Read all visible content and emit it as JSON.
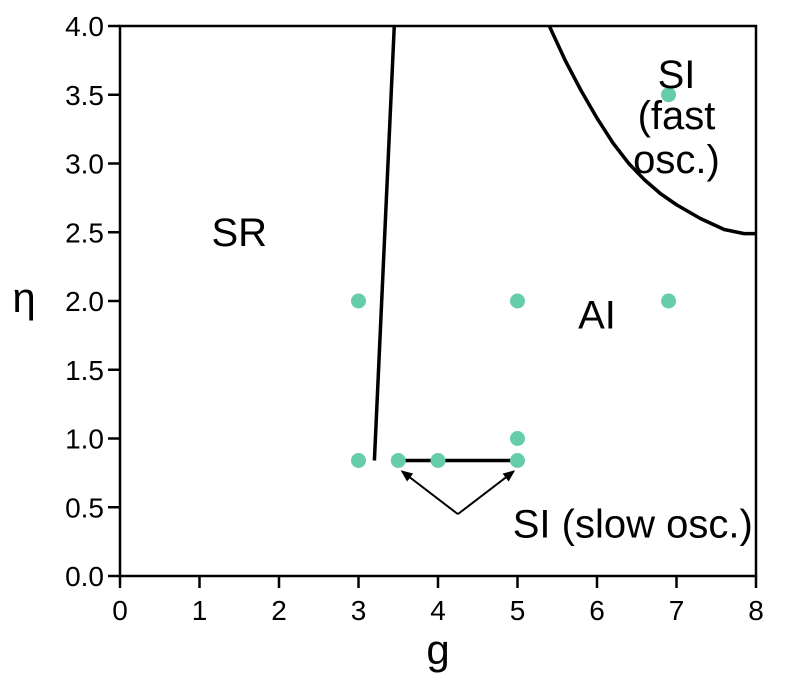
{
  "chart_data": {
    "type": "scatter",
    "title": "",
    "xlabel": "g",
    "ylabel": "η",
    "xlim": [
      0,
      8
    ],
    "ylim": [
      0,
      4
    ],
    "x_ticks": [
      "0",
      "1",
      "2",
      "3",
      "4",
      "5",
      "6",
      "7",
      "8"
    ],
    "y_ticks": [
      "0.0",
      "0.5",
      "1.0",
      "1.5",
      "2.0",
      "2.5",
      "3.0",
      "3.5",
      "4.0"
    ],
    "grid": false,
    "legend": "none",
    "point_color": "#66cdaa",
    "points": [
      {
        "x": 3.0,
        "y": 0.84
      },
      {
        "x": 3.5,
        "y": 0.84
      },
      {
        "x": 4.0,
        "y": 0.84
      },
      {
        "x": 5.0,
        "y": 0.84
      },
      {
        "x": 5.0,
        "y": 1.0
      },
      {
        "x": 3.0,
        "y": 2.0
      },
      {
        "x": 5.0,
        "y": 2.0
      },
      {
        "x": 6.9,
        "y": 2.0
      },
      {
        "x": 6.9,
        "y": 3.5
      }
    ],
    "boundaries": [
      {
        "name": "SR-AI",
        "points": [
          [
            3.2,
            0.84
          ],
          [
            3.45,
            4.0
          ]
        ]
      },
      {
        "name": "SI-slow",
        "points": [
          [
            3.5,
            0.84
          ],
          [
            5.0,
            0.84
          ]
        ]
      },
      {
        "name": "SI-fast",
        "points": [
          [
            5.4,
            4.0
          ],
          [
            5.6,
            3.75
          ],
          [
            5.8,
            3.53
          ],
          [
            6.0,
            3.33
          ],
          [
            6.2,
            3.15
          ],
          [
            6.4,
            3.0
          ],
          [
            6.6,
            2.88
          ],
          [
            6.8,
            2.78
          ],
          [
            7.0,
            2.7
          ],
          [
            7.3,
            2.6
          ],
          [
            7.6,
            2.52
          ],
          [
            7.85,
            2.49
          ],
          [
            8.0,
            2.49
          ]
        ]
      }
    ],
    "annotations": [
      {
        "id": "sr",
        "text": "SR",
        "x": 1.5,
        "y": 2.4
      },
      {
        "id": "ai",
        "text": "AI",
        "x": 6.0,
        "y": 1.8
      },
      {
        "id": "si_fast_line1",
        "text": "SI",
        "x": 7.0,
        "y": 3.55
      },
      {
        "id": "si_fast_line2",
        "text": "(fast",
        "x": 7.0,
        "y": 3.25
      },
      {
        "id": "si_fast_line3",
        "text": "osc.)",
        "x": 7.0,
        "y": 2.93
      },
      {
        "id": "si_slow",
        "text": "SI (slow osc.)",
        "x": 6.45,
        "y": 0.28
      }
    ],
    "arrows": [
      {
        "from": [
          4.25,
          0.45
        ],
        "to": [
          3.55,
          0.76
        ]
      },
      {
        "from": [
          4.25,
          0.45
        ],
        "to": [
          4.95,
          0.76
        ]
      }
    ]
  }
}
